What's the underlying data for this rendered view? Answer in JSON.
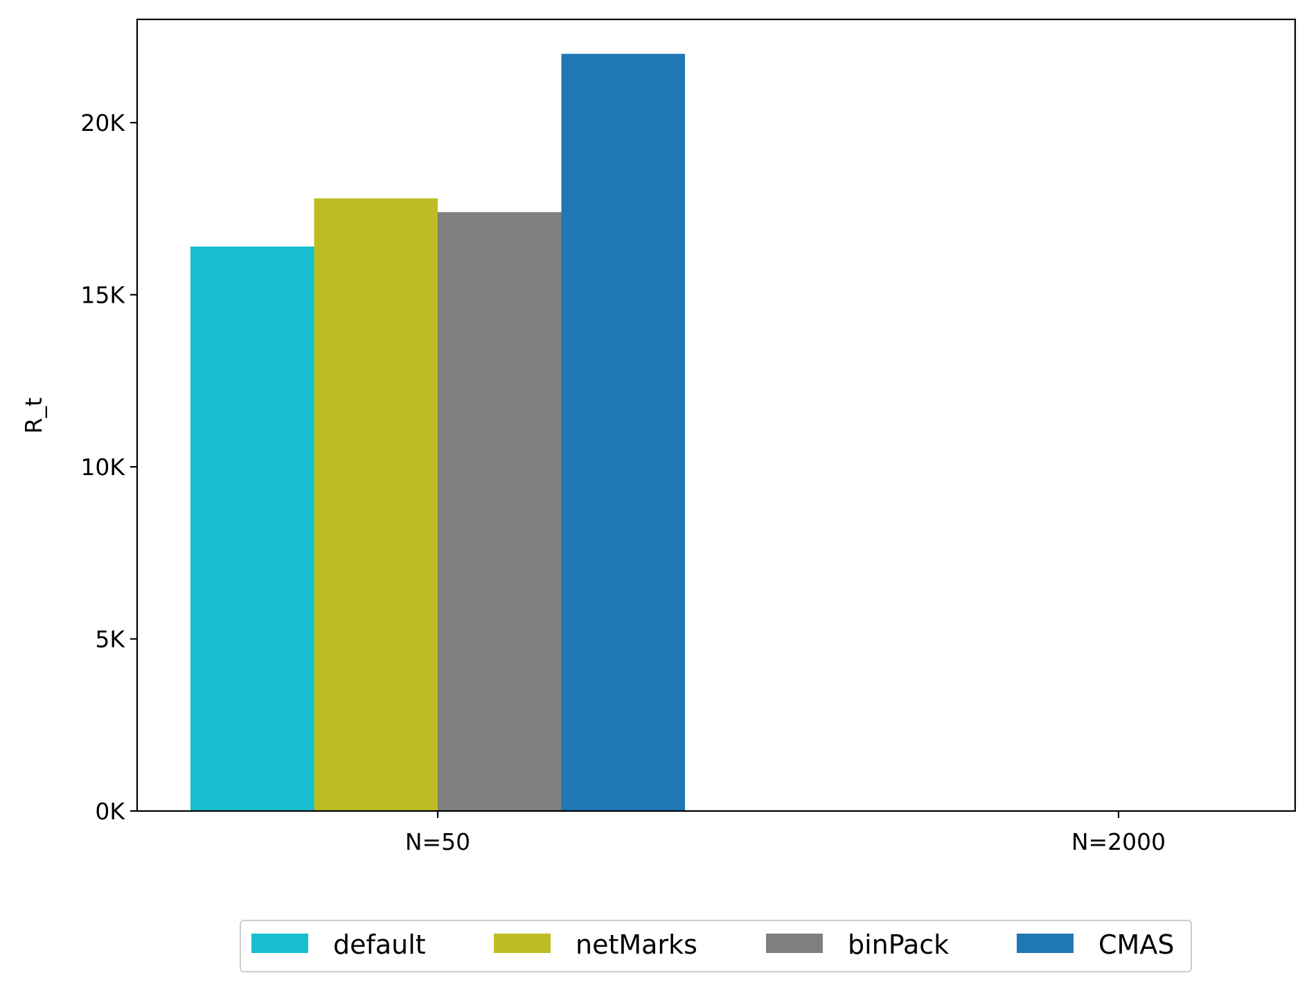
{
  "chart_data": {
    "type": "bar",
    "title": "",
    "xlabel": "",
    "ylabel": "R_t",
    "categories": [
      "N=50",
      "N=2000"
    ],
    "series": [
      {
        "name": "default",
        "color": "#17becf",
        "values": [
          16400,
          0
        ]
      },
      {
        "name": "netMarks",
        "color": "#bcbd22",
        "values": [
          17800,
          0
        ]
      },
      {
        "name": "binPack",
        "color": "#7f7f7f",
        "values": [
          17400,
          0
        ]
      },
      {
        "name": "CMAS",
        "color": "#1f77b4",
        "values": [
          22000,
          0
        ]
      }
    ],
    "ylim": [
      0,
      23000
    ],
    "yticks": [
      0,
      5000,
      10000,
      15000,
      20000
    ],
    "ytick_labels": [
      "0K",
      "5K",
      "10K",
      "15K",
      "20K"
    ],
    "grid": false,
    "legend_position": "bottom-center"
  }
}
